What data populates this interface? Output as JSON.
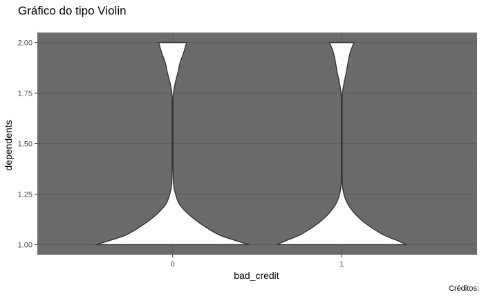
{
  "chart_data": {
    "type": "violin",
    "title": "Gráfico do tipo Violin",
    "xlabel": "bad_credit",
    "ylabel": "dependents",
    "caption": "Créditos:",
    "categories": [
      "0",
      "1"
    ],
    "ylim": [
      0.95,
      2.05
    ],
    "y_ticks": [
      1.0,
      1.25,
      1.5,
      1.75,
      2.0
    ],
    "y_tick_labels": [
      "1.00",
      "1.25",
      "1.50",
      "1.75",
      "2.00"
    ],
    "grid": true,
    "legend": "none",
    "violins": [
      {
        "category": "0",
        "profile": [
          [
            1.0,
            1.0
          ],
          [
            1.02,
            0.83
          ],
          [
            1.05,
            0.6
          ],
          [
            1.1,
            0.38
          ],
          [
            1.15,
            0.21
          ],
          [
            1.2,
            0.09
          ],
          [
            1.25,
            0.038
          ],
          [
            1.3,
            0.012
          ],
          [
            1.4,
            0.006
          ],
          [
            1.5,
            0.006
          ],
          [
            1.6,
            0.006
          ],
          [
            1.7,
            0.006
          ],
          [
            1.75,
            0.01
          ],
          [
            1.8,
            0.034
          ],
          [
            1.85,
            0.068
          ],
          [
            1.9,
            0.097
          ],
          [
            1.95,
            0.144
          ],
          [
            2.0,
            0.183
          ]
        ]
      },
      {
        "category": "1",
        "profile": [
          [
            1.0,
            0.85
          ],
          [
            1.02,
            0.73
          ],
          [
            1.05,
            0.54
          ],
          [
            1.1,
            0.33
          ],
          [
            1.15,
            0.18
          ],
          [
            1.2,
            0.08
          ],
          [
            1.25,
            0.028
          ],
          [
            1.3,
            0.008
          ],
          [
            1.4,
            0.005
          ],
          [
            1.5,
            0.005
          ],
          [
            1.6,
            0.005
          ],
          [
            1.7,
            0.005
          ],
          [
            1.75,
            0.009
          ],
          [
            1.8,
            0.03
          ],
          [
            1.85,
            0.058
          ],
          [
            1.9,
            0.082
          ],
          [
            1.95,
            0.11
          ],
          [
            2.0,
            0.16
          ]
        ]
      }
    ],
    "colors": {
      "panel_background": "#6b6b6b",
      "grid_major": "#5e5e5e",
      "grid_minor": "#656565",
      "violin_fill": "#ffffff",
      "violin_stroke": "#333333",
      "tick_text": "#4d4d4d"
    }
  }
}
